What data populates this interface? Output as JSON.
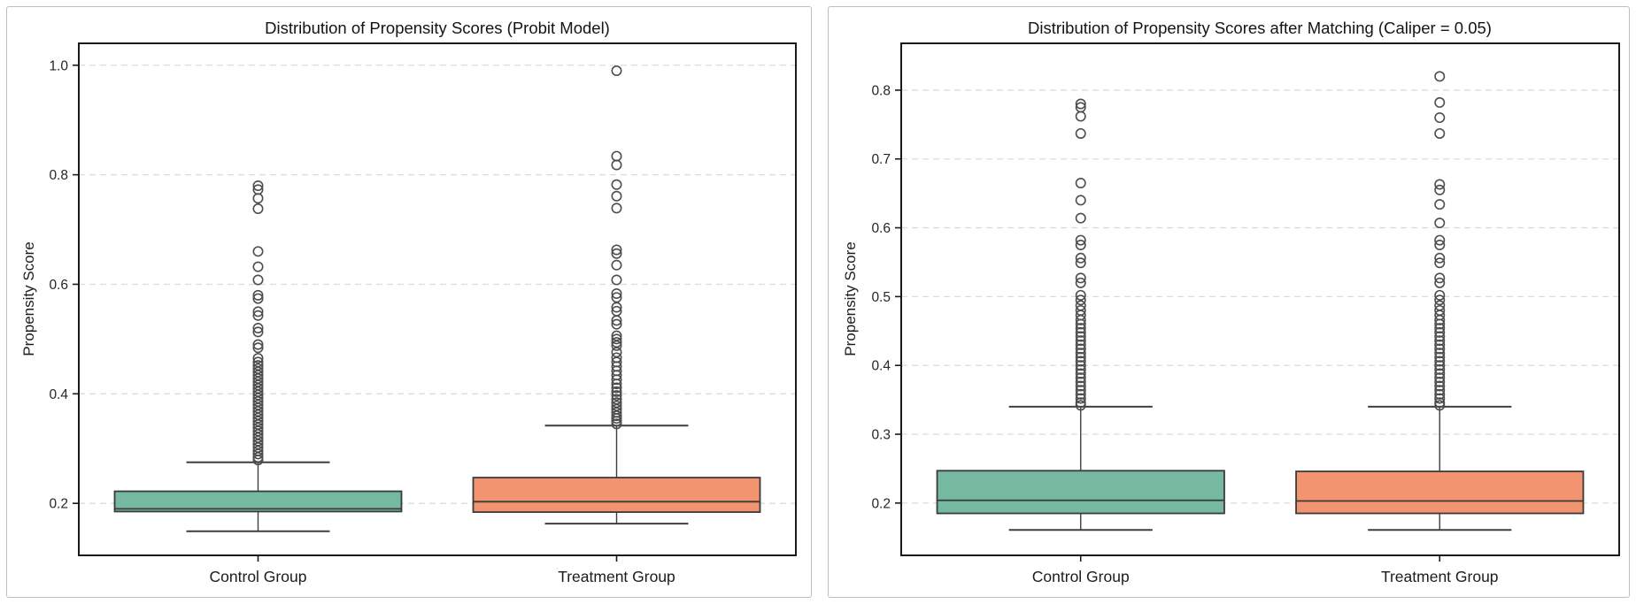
{
  "page": {
    "background": "#ffffff",
    "panel_border": "#b6c0cc",
    "spine_color": "#1a1a1a",
    "grid_color": "#dcdcdc",
    "box_edge_color": "#3a3a3a",
    "whisker_color": "#3f3f3f",
    "flier_color": "#4d4d4d"
  },
  "chart_data": [
    {
      "type": "boxplot",
      "title": "Distribution of Propensity Scores (Probit Model)",
      "ylabel": "Propensity Score",
      "xlabel": "",
      "categories": [
        "Control Group",
        "Treatment Group"
      ],
      "yticks": [
        0.2,
        0.4,
        0.6,
        0.8,
        1.0
      ],
      "ylim": [
        0.105,
        1.04
      ],
      "grid": "dashed-horizontal",
      "legend": "none",
      "boxes": [
        {
          "label": "Control Group",
          "color": "#74b9a0",
          "whisker_low": 0.149,
          "q1": 0.185,
          "median": 0.19,
          "q3": 0.222,
          "whisker_high": 0.275,
          "outliers": [
            0.78,
            0.773,
            0.757,
            0.738,
            0.66,
            0.632,
            0.608,
            0.58,
            0.574,
            0.55,
            0.543,
            0.52,
            0.513,
            0.49,
            0.484,
            0.465,
            0.458,
            0.452,
            0.446,
            0.44,
            0.434,
            0.428,
            0.422,
            0.416,
            0.41,
            0.404,
            0.398,
            0.392,
            0.386,
            0.38,
            0.374,
            0.368,
            0.362,
            0.356,
            0.35,
            0.344,
            0.338,
            0.332,
            0.326,
            0.32,
            0.314,
            0.308,
            0.302,
            0.296,
            0.29,
            0.284,
            0.279
          ]
        },
        {
          "label": "Treatment Group",
          "color": "#f29470",
          "whisker_low": 0.163,
          "q1": 0.184,
          "median": 0.203,
          "q3": 0.247,
          "whisker_high": 0.342,
          "outliers": [
            0.99,
            0.834,
            0.818,
            0.782,
            0.761,
            0.739,
            0.663,
            0.656,
            0.635,
            0.608,
            0.583,
            0.576,
            0.558,
            0.551,
            0.534,
            0.527,
            0.506,
            0.5,
            0.494,
            0.488,
            0.476,
            0.466,
            0.458,
            0.45,
            0.442,
            0.434,
            0.426,
            0.418,
            0.411,
            0.404,
            0.397,
            0.39,
            0.384,
            0.378,
            0.372,
            0.366,
            0.36,
            0.355,
            0.35,
            0.345
          ]
        }
      ]
    },
    {
      "type": "boxplot",
      "title": "Distribution of Propensity Scores after Matching (Caliper = 0.05)",
      "ylabel": "Propensity Score",
      "xlabel": "",
      "categories": [
        "Control Group",
        "Treatment Group"
      ],
      "yticks": [
        0.2,
        0.3,
        0.4,
        0.5,
        0.6,
        0.7,
        0.8
      ],
      "ylim": [
        0.124,
        0.868
      ],
      "grid": "dashed-horizontal",
      "legend": "none",
      "boxes": [
        {
          "label": "Control Group",
          "color": "#74b9a0",
          "whisker_low": 0.161,
          "q1": 0.185,
          "median": 0.204,
          "q3": 0.247,
          "whisker_high": 0.34,
          "outliers": [
            0.78,
            0.775,
            0.762,
            0.737,
            0.665,
            0.64,
            0.614,
            0.582,
            0.575,
            0.556,
            0.549,
            0.527,
            0.52,
            0.502,
            0.495,
            0.487,
            0.48,
            0.473,
            0.466,
            0.46,
            0.454,
            0.448,
            0.442,
            0.436,
            0.43,
            0.424,
            0.418,
            0.412,
            0.406,
            0.4,
            0.394,
            0.388,
            0.382,
            0.376,
            0.37,
            0.364,
            0.358,
            0.352,
            0.346,
            0.342
          ]
        },
        {
          "label": "Treatment Group",
          "color": "#f29470",
          "whisker_low": 0.161,
          "q1": 0.185,
          "median": 0.203,
          "q3": 0.246,
          "whisker_high": 0.34,
          "outliers": [
            0.82,
            0.782,
            0.76,
            0.737,
            0.663,
            0.655,
            0.634,
            0.607,
            0.582,
            0.575,
            0.556,
            0.549,
            0.527,
            0.52,
            0.502,
            0.495,
            0.487,
            0.48,
            0.473,
            0.466,
            0.46,
            0.454,
            0.448,
            0.442,
            0.436,
            0.43,
            0.424,
            0.418,
            0.412,
            0.406,
            0.4,
            0.394,
            0.388,
            0.382,
            0.376,
            0.37,
            0.364,
            0.358,
            0.352,
            0.346,
            0.342
          ]
        }
      ]
    }
  ]
}
